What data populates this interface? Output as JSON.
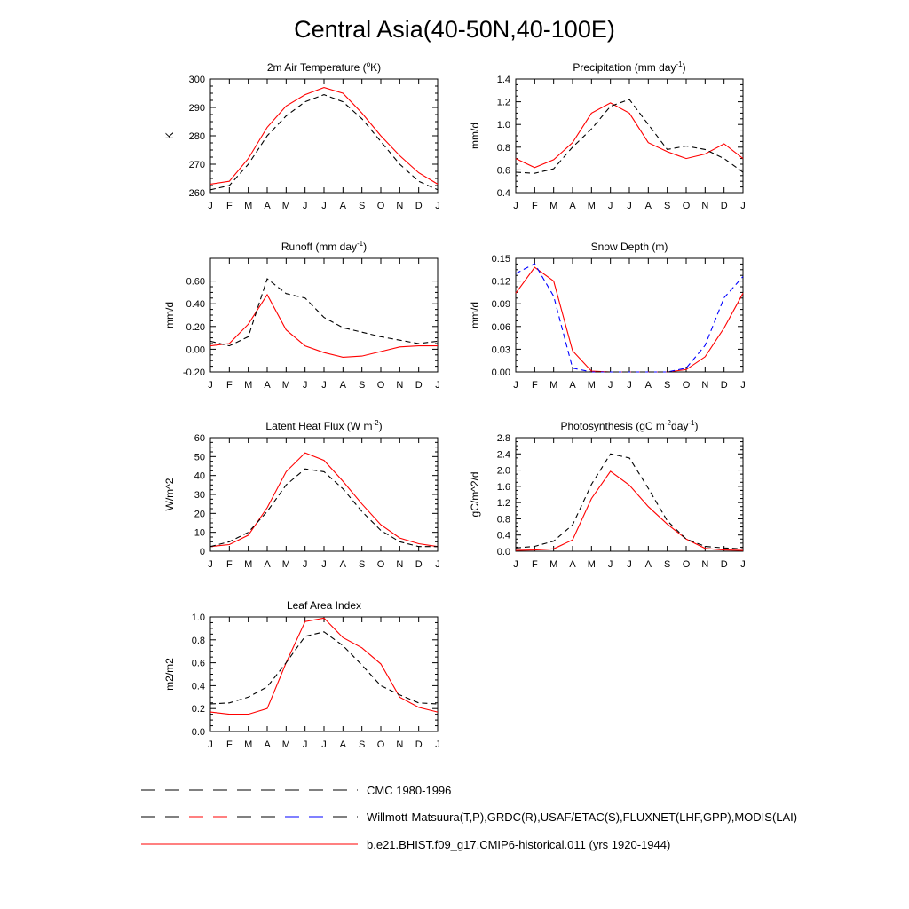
{
  "title": "Central Asia(40-50N,40-100E)",
  "months": [
    "J",
    "F",
    "M",
    "A",
    "M",
    "J",
    "J",
    "A",
    "S",
    "O",
    "N",
    "D",
    "J"
  ],
  "colors": {
    "model": "#ff0000",
    "obs": "#000000",
    "snow_obs": "#0000ff"
  },
  "legend": [
    {
      "label": "CMC 1980-1996",
      "style": "dashed",
      "colors": [
        "#000000"
      ]
    },
    {
      "label": "Willmott-Matsuura(T,P),GRDC(R),USAF/ETAC(S),FLUXNET(LHF,GPP),MODIS(LAI)",
      "style": "dashed",
      "colors": [
        "#000000",
        "#ff0000",
        "#000000",
        "#0000ff",
        "#000000"
      ]
    },
    {
      "label": "b.e21.BHIST.f09_g17.CMIP6-historical.011 (yrs 1920-1944)",
      "style": "solid",
      "colors": [
        "#ff0000"
      ]
    }
  ],
  "chart_data": [
    {
      "type": "line",
      "title": "2m Air Temperature (°K)",
      "title_parts": {
        "pre": "2m Air Temperature (",
        "sup": "o",
        "post": "K)"
      },
      "ylabel": "K",
      "ylim": [
        260,
        300
      ],
      "yticks": [
        "260",
        "270",
        "280",
        "290",
        "300"
      ],
      "x": [
        "J",
        "F",
        "M",
        "A",
        "M",
        "J",
        "J",
        "A",
        "S",
        "O",
        "N",
        "D",
        "J"
      ],
      "series": [
        {
          "role": "model",
          "style": "solid",
          "color": "#ff0000",
          "values": [
            263,
            264,
            272,
            283,
            290.5,
            294.5,
            297,
            295,
            288,
            280,
            273,
            267,
            263
          ]
        },
        {
          "role": "obs",
          "style": "dashed",
          "color": "#000000",
          "values": [
            261,
            262.5,
            270,
            280,
            287,
            292,
            294.5,
            292,
            286,
            278,
            270,
            264,
            261
          ]
        }
      ]
    },
    {
      "type": "line",
      "title": "Precipitation (mm day-1)",
      "title_parts": {
        "pre": "Precipitation (mm day",
        "sup": "-1",
        "post": ")"
      },
      "ylabel": "mm/d",
      "ylim": [
        0.4,
        1.4
      ],
      "yticks": [
        "0.4",
        "0.6",
        "0.8",
        "1.0",
        "1.2",
        "1.4"
      ],
      "x": [
        "J",
        "F",
        "M",
        "A",
        "M",
        "J",
        "J",
        "A",
        "S",
        "O",
        "N",
        "D",
        "J"
      ],
      "series": [
        {
          "role": "model",
          "style": "solid",
          "color": "#ff0000",
          "values": [
            0.7,
            0.62,
            0.69,
            0.84,
            1.1,
            1.19,
            1.1,
            0.84,
            0.76,
            0.7,
            0.74,
            0.83,
            0.7
          ]
        },
        {
          "role": "obs",
          "style": "dashed",
          "color": "#000000",
          "values": [
            0.58,
            0.57,
            0.61,
            0.8,
            0.96,
            1.16,
            1.22,
            1.0,
            0.78,
            0.81,
            0.78,
            0.7,
            0.58
          ]
        }
      ]
    },
    {
      "type": "line",
      "title": "Runoff (mm day-1)",
      "title_parts": {
        "pre": "Runoff (mm day",
        "sup": "-1",
        "post": ")"
      },
      "ylabel": "mm/d",
      "ylim": [
        -0.2,
        0.8
      ],
      "yticks": [
        "-0.20",
        "0.00",
        "0.20",
        "0.40",
        "0.60"
      ],
      "ytick_values": [
        -0.2,
        0.0,
        0.2,
        0.4,
        0.6
      ],
      "x": [
        "J",
        "F",
        "M",
        "A",
        "M",
        "J",
        "J",
        "A",
        "S",
        "O",
        "N",
        "D",
        "J"
      ],
      "series": [
        {
          "role": "model",
          "style": "solid",
          "color": "#ff0000",
          "values": [
            0.03,
            0.05,
            0.22,
            0.48,
            0.17,
            0.03,
            -0.03,
            -0.07,
            -0.06,
            -0.02,
            0.02,
            0.03,
            0.03
          ]
        },
        {
          "role": "obs",
          "style": "dashed",
          "color": "#000000",
          "values": [
            0.07,
            0.03,
            0.11,
            0.62,
            0.49,
            0.45,
            0.28,
            0.19,
            0.15,
            0.11,
            0.08,
            0.05,
            0.07
          ]
        }
      ]
    },
    {
      "type": "line",
      "title": "Snow Depth (m)",
      "title_parts": {
        "pre": "Snow Depth (m)",
        "sup": "",
        "post": ""
      },
      "ylabel": "mm/d",
      "ylim": [
        0.0,
        0.15
      ],
      "yticks": [
        "0.00",
        "0.03",
        "0.06",
        "0.09",
        "0.12",
        "0.15"
      ],
      "x": [
        "J",
        "F",
        "M",
        "A",
        "M",
        "J",
        "J",
        "A",
        "S",
        "O",
        "N",
        "D",
        "J"
      ],
      "series": [
        {
          "role": "model",
          "style": "solid",
          "color": "#ff0000",
          "values": [
            0.104,
            0.138,
            0.12,
            0.028,
            0.001,
            0.0,
            0.0,
            0.0,
            0.0,
            0.003,
            0.02,
            0.058,
            0.104
          ]
        },
        {
          "role": "obs",
          "style": "dashed",
          "color": "#0000ff",
          "values": [
            0.13,
            0.143,
            0.1,
            0.005,
            0.0,
            0.0,
            0.0,
            0.0,
            0.0,
            0.005,
            0.035,
            0.098,
            0.126
          ]
        },
        {
          "role": "obs",
          "style": "dashed",
          "color": "#000000",
          "values": [
            0,
            0,
            0,
            0,
            0,
            0,
            0,
            0,
            0,
            0,
            0,
            0,
            0
          ]
        }
      ]
    },
    {
      "type": "line",
      "title": "Latent Heat Flux (W m-2)",
      "title_parts": {
        "pre": "Latent Heat Flux (W m",
        "sup": "-2",
        "post": ")"
      },
      "ylabel": "W/m^2",
      "ylim": [
        0,
        60
      ],
      "yticks": [
        "0",
        "10",
        "20",
        "30",
        "40",
        "50",
        "60"
      ],
      "x": [
        "J",
        "F",
        "M",
        "A",
        "M",
        "J",
        "J",
        "A",
        "S",
        "O",
        "N",
        "D",
        "J"
      ],
      "series": [
        {
          "role": "model",
          "style": "solid",
          "color": "#ff0000",
          "values": [
            2.5,
            3.5,
            8.5,
            23,
            42,
            52,
            48,
            37,
            25,
            14,
            7,
            4,
            2.5
          ]
        },
        {
          "role": "obs",
          "style": "dashed",
          "color": "#000000",
          "values": [
            2.5,
            5,
            10,
            21,
            35,
            43.5,
            42,
            33,
            21,
            11,
            5,
            2.5,
            2.5
          ]
        }
      ]
    },
    {
      "type": "line",
      "title": "Photosynthesis (gC m-2day-1)",
      "title_parts": {
        "pre": "Photosynthesis (gC m",
        "sup": "-2",
        "post": "day",
        "sup2": "-1",
        "post2": ")"
      },
      "ylabel": "gC/m^2/d",
      "ylim": [
        0.0,
        2.8
      ],
      "yticks": [
        "0.0",
        "0.4",
        "0.8",
        "1.2",
        "1.6",
        "2.0",
        "2.4",
        "2.8"
      ],
      "x": [
        "J",
        "F",
        "M",
        "A",
        "M",
        "J",
        "J",
        "A",
        "S",
        "O",
        "N",
        "D",
        "J"
      ],
      "series": [
        {
          "role": "model",
          "style": "solid",
          "color": "#ff0000",
          "values": [
            0.02,
            0.03,
            0.06,
            0.28,
            1.3,
            1.97,
            1.63,
            1.1,
            0.67,
            0.3,
            0.07,
            0.03,
            0.02
          ]
        },
        {
          "role": "obs",
          "style": "dashed",
          "color": "#000000",
          "values": [
            0.08,
            0.12,
            0.25,
            0.65,
            1.65,
            2.4,
            2.3,
            1.55,
            0.75,
            0.3,
            0.12,
            0.08,
            0.06
          ]
        }
      ]
    },
    {
      "type": "line",
      "title": "Leaf Area Index",
      "title_parts": {
        "pre": "Leaf Area Index",
        "sup": "",
        "post": ""
      },
      "ylabel": "m2/m2",
      "ylim": [
        0.0,
        1.0
      ],
      "yticks": [
        "0.0",
        "0.2",
        "0.4",
        "0.6",
        "0.8",
        "1.0"
      ],
      "x": [
        "J",
        "F",
        "M",
        "A",
        "M",
        "J",
        "J",
        "A",
        "S",
        "O",
        "N",
        "D",
        "J"
      ],
      "series": [
        {
          "role": "model",
          "style": "solid",
          "color": "#ff0000",
          "values": [
            0.17,
            0.15,
            0.15,
            0.2,
            0.6,
            0.96,
            0.99,
            0.82,
            0.73,
            0.59,
            0.3,
            0.21,
            0.17
          ]
        },
        {
          "role": "obs",
          "style": "dashed",
          "color": "#000000",
          "values": [
            0.24,
            0.25,
            0.3,
            0.39,
            0.6,
            0.83,
            0.87,
            0.75,
            0.58,
            0.4,
            0.32,
            0.25,
            0.24
          ]
        }
      ]
    }
  ]
}
